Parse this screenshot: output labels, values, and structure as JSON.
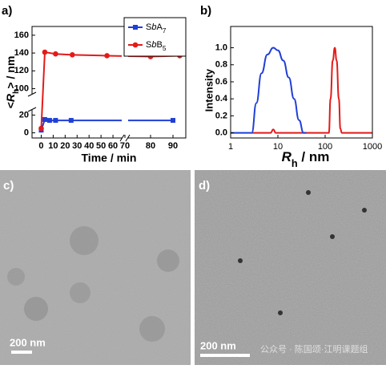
{
  "chart_data": [
    {
      "type": "line",
      "panel": "a)",
      "xlabel": "Time / min",
      "ylabel": "<Rh> / nm",
      "xlim": [
        -3,
        95
      ],
      "xbreak": 70,
      "xticks": [
        0,
        10,
        20,
        30,
        40,
        50,
        60,
        70,
        80,
        90
      ],
      "ylim": [
        -4,
        168
      ],
      "ybreak": [
        24,
        96
      ],
      "yticks": [
        0,
        20,
        100,
        120,
        140,
        160
      ],
      "legend": "upper right",
      "series": [
        {
          "name": "SbA7",
          "color": "#1f3fd6",
          "marker": "square",
          "x": [
            0,
            3,
            7,
            12,
            25,
            90
          ],
          "values": [
            3,
            15,
            14,
            14,
            14,
            14
          ]
        },
        {
          "name": "SbB5",
          "color": "#e41a1a",
          "marker": "circle",
          "x": [
            0,
            3,
            12,
            26,
            55,
            80,
            93
          ],
          "values": [
            5,
            141,
            139,
            138,
            137,
            136,
            137
          ]
        }
      ]
    },
    {
      "type": "line",
      "panel": "b)",
      "xlabel": "Rh / nm",
      "ylabel": "Intensity",
      "xscale": "log",
      "xlim": [
        1,
        1000
      ],
      "xticks": [
        1,
        10,
        100,
        1000
      ],
      "ylim": [
        -0.06,
        1.25
      ],
      "yticks": [
        {
          "value": 0,
          "label": "0.0"
        },
        {
          "value": 0.2,
          "label": "0.2"
        },
        {
          "value": 0.4,
          "label": "0.4"
        },
        {
          "value": 0.6,
          "label": "0.6"
        },
        {
          "value": 0.8,
          "label": "0.8"
        },
        {
          "value": 1,
          "label": "1.0"
        }
      ],
      "series": [
        {
          "name": "SbB5",
          "color": "#e41a1a",
          "x": [
            2.8,
            7,
            8,
            9,
            120,
            130,
            145,
            160,
            175,
            195,
            210,
            225,
            1000
          ],
          "values": [
            0,
            0,
            0.04,
            0,
            0,
            0.4,
            0.85,
            1.0,
            0.85,
            0.4,
            0.05,
            0,
            0
          ]
        },
        {
          "name": "SbA7",
          "color": "#1f3fd6",
          "x": [
            1,
            2.8,
            3.5,
            4.5,
            6,
            8,
            10,
            13,
            17,
            22,
            28,
            35,
            40
          ],
          "values": [
            0,
            0,
            0.35,
            0.7,
            0.92,
            1.0,
            0.97,
            0.85,
            0.65,
            0.4,
            0.15,
            0,
            0
          ]
        }
      ]
    }
  ],
  "images": [
    {
      "panel": "c)",
      "scale_bar": "200 nm"
    },
    {
      "panel": "d)",
      "scale_bar": "200 nm"
    }
  ],
  "watermark": "公众号 · 陈国颂·江明课题组"
}
